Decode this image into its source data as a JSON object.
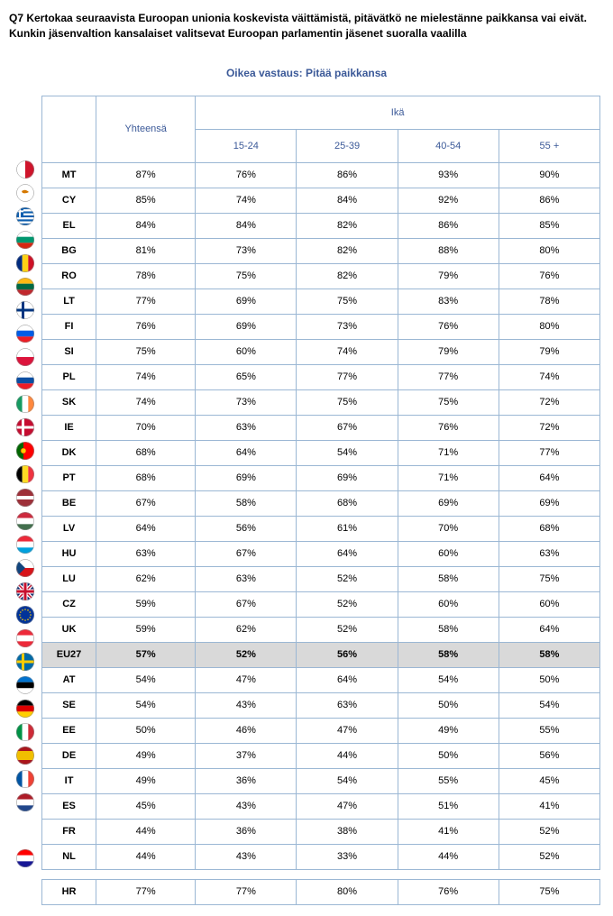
{
  "question_text": "Q7 Kertokaa seuraavista Euroopan unionia koskevista väittämistä, pitävätkö ne mielestänne paikkansa vai eivät. Kunkin jäsenvaltion kansalaiset valitsevat Euroopan parlamentin jäsenet suoralla vaalilla",
  "subtitle_text": "Oikea vastaus: Pitää paikkansa",
  "headers": {
    "total": "Yhteensä",
    "age_group": "Ikä",
    "ages": [
      "15-24",
      "25-39",
      "40-54",
      "55 +"
    ]
  },
  "colors": {
    "border": "#9bb7d4",
    "header_text": "#3b5998",
    "highlight_bg": "#d9d9d9"
  },
  "rows": [
    {
      "code": "MT",
      "total": "87%",
      "vals": [
        "76%",
        "86%",
        "93%",
        "90%"
      ],
      "flag_colors": [
        "#ffffff",
        "#cf142b"
      ],
      "flag_type": "vbi"
    },
    {
      "code": "CY",
      "total": "85%",
      "vals": [
        "74%",
        "84%",
        "92%",
        "86%"
      ],
      "flag_colors": [
        "#ffffff",
        "#d57800"
      ],
      "flag_type": "plain_dot"
    },
    {
      "code": "EL",
      "total": "84%",
      "vals": [
        "84%",
        "82%",
        "86%",
        "85%"
      ],
      "flag_colors": [
        "#0d5eaf",
        "#ffffff"
      ],
      "flag_type": "stripesH"
    },
    {
      "code": "BG",
      "total": "81%",
      "vals": [
        "73%",
        "82%",
        "88%",
        "80%"
      ],
      "flag_colors": [
        "#ffffff",
        "#00966e",
        "#d62612"
      ],
      "flag_type": "tri_h"
    },
    {
      "code": "RO",
      "total": "78%",
      "vals": [
        "75%",
        "82%",
        "79%",
        "76%"
      ],
      "flag_colors": [
        "#002b7f",
        "#fcd116",
        "#ce1126"
      ],
      "flag_type": "tri_v"
    },
    {
      "code": "LT",
      "total": "77%",
      "vals": [
        "69%",
        "75%",
        "83%",
        "78%"
      ],
      "flag_colors": [
        "#fdb913",
        "#006a44",
        "#c1272d"
      ],
      "flag_type": "tri_h"
    },
    {
      "code": "FI",
      "total": "76%",
      "vals": [
        "69%",
        "73%",
        "76%",
        "80%"
      ],
      "flag_colors": [
        "#ffffff",
        "#003580"
      ],
      "flag_type": "cross"
    },
    {
      "code": "SI",
      "total": "75%",
      "vals": [
        "60%",
        "74%",
        "79%",
        "79%"
      ],
      "flag_colors": [
        "#ffffff",
        "#005ce5",
        "#ed1c24"
      ],
      "flag_type": "tri_h"
    },
    {
      "code": "PL",
      "total": "74%",
      "vals": [
        "65%",
        "77%",
        "77%",
        "74%"
      ],
      "flag_colors": [
        "#ffffff",
        "#dc143c"
      ],
      "flag_type": "bi_h"
    },
    {
      "code": "SK",
      "total": "74%",
      "vals": [
        "73%",
        "75%",
        "75%",
        "72%"
      ],
      "flag_colors": [
        "#ffffff",
        "#0b4ea2",
        "#ee1c25"
      ],
      "flag_type": "tri_h"
    },
    {
      "code": "IE",
      "total": "70%",
      "vals": [
        "63%",
        "67%",
        "76%",
        "72%"
      ],
      "flag_colors": [
        "#169b62",
        "#ffffff",
        "#ff883e"
      ],
      "flag_type": "tri_v"
    },
    {
      "code": "DK",
      "total": "68%",
      "vals": [
        "64%",
        "54%",
        "71%",
        "77%"
      ],
      "flag_colors": [
        "#c60c30",
        "#ffffff"
      ],
      "flag_type": "cross"
    },
    {
      "code": "PT",
      "total": "68%",
      "vals": [
        "69%",
        "69%",
        "71%",
        "64%"
      ],
      "flag_colors": [
        "#006600",
        "#ff0000"
      ],
      "flag_type": "vbi_pt"
    },
    {
      "code": "BE",
      "total": "67%",
      "vals": [
        "58%",
        "68%",
        "69%",
        "69%"
      ],
      "flag_colors": [
        "#000000",
        "#fdda24",
        "#ef3340"
      ],
      "flag_type": "tri_v"
    },
    {
      "code": "LV",
      "total": "64%",
      "vals": [
        "56%",
        "61%",
        "70%",
        "68%"
      ],
      "flag_colors": [
        "#9e3039",
        "#ffffff",
        "#9e3039"
      ],
      "flag_type": "tri_h_thin"
    },
    {
      "code": "HU",
      "total": "63%",
      "vals": [
        "67%",
        "64%",
        "60%",
        "63%"
      ],
      "flag_colors": [
        "#cd2a3e",
        "#ffffff",
        "#436f4d"
      ],
      "flag_type": "tri_h"
    },
    {
      "code": "LU",
      "total": "62%",
      "vals": [
        "63%",
        "52%",
        "58%",
        "75%"
      ],
      "flag_colors": [
        "#ed2939",
        "#ffffff",
        "#00a1de"
      ],
      "flag_type": "tri_h"
    },
    {
      "code": "CZ",
      "total": "59%",
      "vals": [
        "67%",
        "52%",
        "60%",
        "60%"
      ],
      "flag_colors": [
        "#ffffff",
        "#d7141a",
        "#11457e"
      ],
      "flag_type": "cz"
    },
    {
      "code": "UK",
      "total": "59%",
      "vals": [
        "62%",
        "52%",
        "58%",
        "64%"
      ],
      "flag_colors": [
        "#012169",
        "#ffffff",
        "#c8102e"
      ],
      "flag_type": "uk"
    },
    {
      "code": "EU27",
      "total": "57%",
      "vals": [
        "52%",
        "56%",
        "58%",
        "58%"
      ],
      "flag_colors": [
        "#003399",
        "#ffcc00"
      ],
      "flag_type": "eu",
      "highlight": true
    },
    {
      "code": "AT",
      "total": "54%",
      "vals": [
        "47%",
        "64%",
        "54%",
        "50%"
      ],
      "flag_colors": [
        "#ed2939",
        "#ffffff",
        "#ed2939"
      ],
      "flag_type": "tri_h"
    },
    {
      "code": "SE",
      "total": "54%",
      "vals": [
        "43%",
        "63%",
        "50%",
        "54%"
      ],
      "flag_colors": [
        "#006aa7",
        "#fecc00"
      ],
      "flag_type": "cross"
    },
    {
      "code": "EE",
      "total": "50%",
      "vals": [
        "46%",
        "47%",
        "49%",
        "55%"
      ],
      "flag_colors": [
        "#0072ce",
        "#000000",
        "#ffffff"
      ],
      "flag_type": "tri_h"
    },
    {
      "code": "DE",
      "total": "49%",
      "vals": [
        "37%",
        "44%",
        "50%",
        "56%"
      ],
      "flag_colors": [
        "#000000",
        "#dd0000",
        "#ffce00"
      ],
      "flag_type": "tri_h"
    },
    {
      "code": "IT",
      "total": "49%",
      "vals": [
        "36%",
        "54%",
        "55%",
        "45%"
      ],
      "flag_colors": [
        "#009246",
        "#ffffff",
        "#ce2b37"
      ],
      "flag_type": "tri_v"
    },
    {
      "code": "ES",
      "total": "45%",
      "vals": [
        "43%",
        "47%",
        "51%",
        "41%"
      ],
      "flag_colors": [
        "#aa151b",
        "#f1bf00",
        "#aa151b"
      ],
      "flag_type": "tri_h_thin_inv"
    },
    {
      "code": "FR",
      "total": "44%",
      "vals": [
        "36%",
        "38%",
        "41%",
        "52%"
      ],
      "flag_colors": [
        "#0055a4",
        "#ffffff",
        "#ef4135"
      ],
      "flag_type": "tri_v"
    },
    {
      "code": "NL",
      "total": "44%",
      "vals": [
        "43%",
        "33%",
        "44%",
        "52%"
      ],
      "flag_colors": [
        "#ae1c28",
        "#ffffff",
        "#21468b"
      ],
      "flag_type": "tri_h"
    },
    {
      "spacer": true
    },
    {
      "code": "HR",
      "total": "77%",
      "vals": [
        "77%",
        "80%",
        "76%",
        "75%"
      ],
      "flag_colors": [
        "#ff0000",
        "#ffffff",
        "#171796"
      ],
      "flag_type": "tri_h"
    }
  ]
}
